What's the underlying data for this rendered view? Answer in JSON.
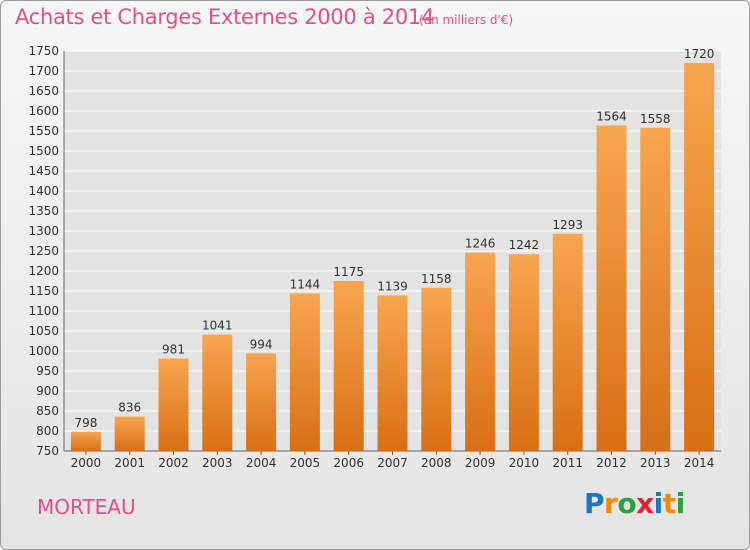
{
  "header": {
    "title": "Achats et Charges Externes 2000 à 2014",
    "subtitle": "(en milliers d'€)"
  },
  "footer": {
    "commune": "MORTEAU",
    "logo": [
      "P",
      "r",
      "o",
      "x",
      "i",
      "t",
      "i"
    ],
    "logo_colors": [
      "#1a78c2",
      "#f08a00",
      "#2aa13a",
      "#e2203a",
      "#1a78c2",
      "#f08a00",
      "#2aa13a"
    ]
  },
  "chart_data": {
    "type": "bar",
    "title": "Achats et Charges Externes 2000 à 2014",
    "subtitle": "(en milliers d'€)",
    "categories": [
      "2000",
      "2001",
      "2002",
      "2003",
      "2004",
      "2005",
      "2006",
      "2007",
      "2008",
      "2009",
      "2010",
      "2011",
      "2012",
      "2013",
      "2014"
    ],
    "values": [
      798,
      836,
      981,
      1041,
      994,
      1144,
      1175,
      1139,
      1158,
      1246,
      1242,
      1293,
      1564,
      1558,
      1720
    ],
    "ylim": [
      750,
      1750
    ],
    "ytick_step": 50,
    "grid": true,
    "bar_color_top": "#f8a550",
    "bar_color_bottom": "#d86f14"
  }
}
